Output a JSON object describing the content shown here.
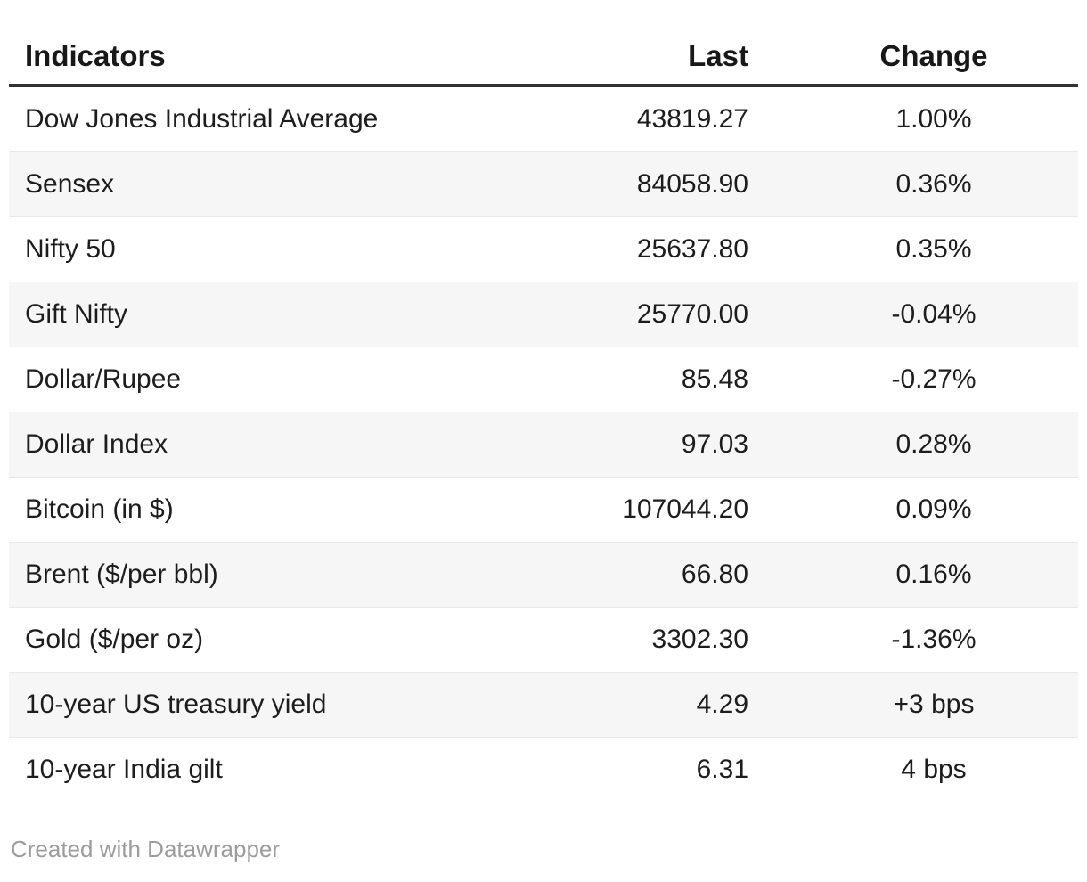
{
  "table": {
    "columns": [
      {
        "key": "indicator",
        "label": "Indicators",
        "align": "left"
      },
      {
        "key": "last",
        "label": "Last",
        "align": "right"
      },
      {
        "key": "change",
        "label": "Change",
        "align": "center"
      }
    ],
    "rows": [
      {
        "indicator": "Dow Jones Industrial Average",
        "last": "43819.27",
        "change": "1.00%"
      },
      {
        "indicator": "Sensex",
        "last": "84058.90",
        "change": "0.36%"
      },
      {
        "indicator": "Nifty 50",
        "last": "25637.80",
        "change": "0.35%"
      },
      {
        "indicator": "Gift Nifty",
        "last": "25770.00",
        "change": "-0.04%"
      },
      {
        "indicator": "Dollar/Rupee",
        "last": "85.48",
        "change": "-0.27%"
      },
      {
        "indicator": "Dollar Index",
        "last": "97.03",
        "change": "0.28%"
      },
      {
        "indicator": "Bitcoin (in $)",
        "last": "107044.20",
        "change": "0.09%"
      },
      {
        "indicator": "Brent ($/per bbl)",
        "last": "66.80",
        "change": "0.16%"
      },
      {
        "indicator": "Gold ($/per oz)",
        "last": "3302.30",
        "change": "-1.36%"
      },
      {
        "indicator": "10-year US treasury yield",
        "last": "4.29",
        "change": "+3 bps"
      },
      {
        "indicator": "10-year India gilt",
        "last": "6.31",
        "change": "4 bps"
      }
    ]
  },
  "footer": {
    "attribution": "Created with Datawrapper"
  },
  "colors": {
    "header_rule": "#323232",
    "row_separator": "#e8e8e8",
    "zebra_row_background": "#f6f6f6",
    "body_text": "#1d1d1d",
    "attribution_text": "#9c9c9c",
    "page_background": "#ffffff"
  },
  "chart_data": {
    "type": "table",
    "title": "",
    "columns": [
      "Indicators",
      "Last",
      "Change"
    ],
    "rows": [
      [
        "Dow Jones Industrial Average",
        43819.27,
        "1.00%"
      ],
      [
        "Sensex",
        84058.9,
        "0.36%"
      ],
      [
        "Nifty 50",
        25637.8,
        "0.35%"
      ],
      [
        "Gift Nifty",
        25770.0,
        "-0.04%"
      ],
      [
        "Dollar/Rupee",
        85.48,
        "-0.27%"
      ],
      [
        "Dollar Index",
        97.03,
        "0.28%"
      ],
      [
        "Bitcoin (in $)",
        107044.2,
        "0.09%"
      ],
      [
        "Brent ($/per bbl)",
        66.8,
        "0.16%"
      ],
      [
        "Gold ($/per oz)",
        3302.3,
        "-1.36%"
      ],
      [
        "10-year US treasury yield",
        4.29,
        "+3 bps"
      ],
      [
        "10-year India gilt",
        6.31,
        "4 bps"
      ]
    ],
    "layout_hints": {
      "zebra_striping": true,
      "last_column_alignment": "right",
      "change_column_alignment": "center",
      "attribution": "Created with Datawrapper"
    }
  }
}
